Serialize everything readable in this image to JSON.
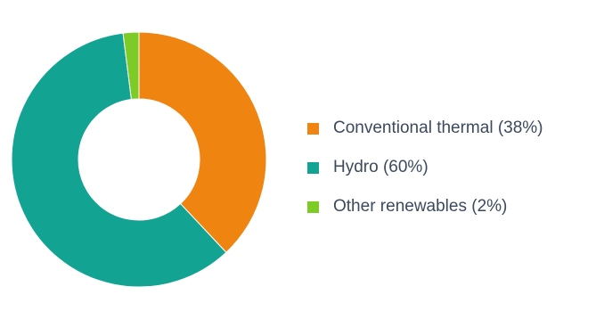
{
  "chart_data": {
    "type": "pie",
    "donut": true,
    "legend_position": "right",
    "series": [
      {
        "name": "Conventional thermal",
        "value": 38,
        "label": "Conventional thermal (38%)",
        "color": "#f08410"
      },
      {
        "name": "Hydro",
        "value": 60,
        "label": "Hydro (60%)",
        "color": "#12a392"
      },
      {
        "name": "Other renewables",
        "value": 2,
        "label": "Other renewables (2%)",
        "color": "#7ccb27"
      }
    ]
  }
}
